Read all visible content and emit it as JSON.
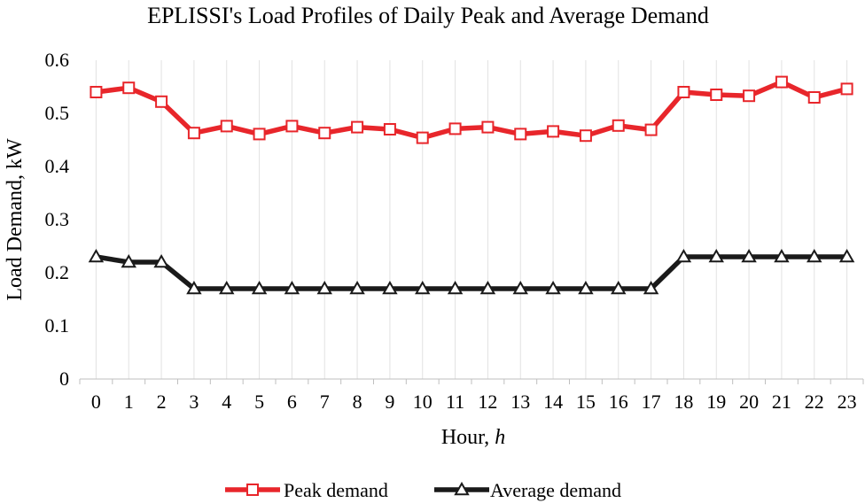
{
  "chart_data": {
    "type": "line",
    "title": "EPLISSI's Load Profiles of Daily Peak and Average Demand",
    "xlabel": "Hour, ",
    "xlabel_var": "h",
    "ylabel": "Load Demand, kW",
    "x": [
      0,
      1,
      2,
      3,
      4,
      5,
      6,
      7,
      8,
      9,
      10,
      11,
      12,
      13,
      14,
      15,
      16,
      17,
      18,
      19,
      20,
      21,
      22,
      23
    ],
    "ylim": [
      0,
      0.6
    ],
    "yticks": [
      "0",
      "0.1",
      "0.2",
      "0.3",
      "0.4",
      "0.5",
      "0.6"
    ],
    "yticks_values": [
      0,
      0.1,
      0.2,
      0.3,
      0.4,
      0.5,
      0.6
    ],
    "grid": "vertical",
    "legend": "bottom",
    "series": [
      {
        "name": "Peak demand",
        "color": "#e8262b",
        "marker": "square",
        "values": [
          0.54,
          0.548,
          0.522,
          0.463,
          0.476,
          0.461,
          0.476,
          0.463,
          0.474,
          0.47,
          0.454,
          0.471,
          0.474,
          0.461,
          0.466,
          0.458,
          0.477,
          0.469,
          0.54,
          0.535,
          0.533,
          0.559,
          0.53,
          0.546
        ]
      },
      {
        "name": "Average demand",
        "color": "#1a1a1a",
        "marker": "triangle",
        "values": [
          0.23,
          0.22,
          0.22,
          0.17,
          0.17,
          0.17,
          0.17,
          0.17,
          0.17,
          0.17,
          0.17,
          0.17,
          0.17,
          0.17,
          0.17,
          0.17,
          0.17,
          0.17,
          0.23,
          0.23,
          0.23,
          0.23,
          0.23,
          0.23
        ]
      }
    ]
  }
}
